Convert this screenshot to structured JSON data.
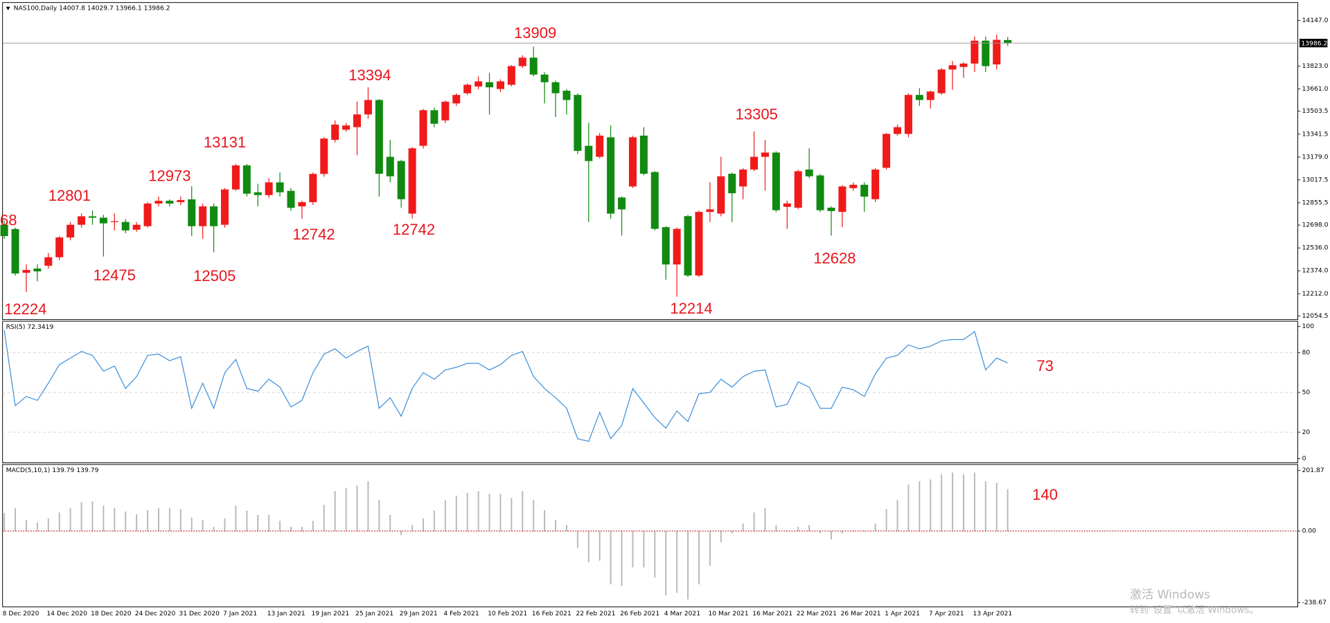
{
  "header": "NAS100,Daily  14007.8 14029.7 13966.1 13986.2",
  "watermark": [
    "激活 Windows",
    "转到“设置”以激活 Windows。"
  ],
  "chart_data": [
    {
      "type": "candlestick",
      "categories": [
        "8 Dec 2020",
        null,
        null,
        null,
        "14 Dec 2020",
        null,
        null,
        null,
        "18 Dec 2020",
        null,
        null,
        null,
        "24 Dec 2020",
        null,
        null,
        null,
        "31 Dec 2020",
        null,
        null,
        null,
        "7 Jan 2021",
        null,
        null,
        null,
        "13 Jan 2021",
        null,
        null,
        null,
        "19 Jan 2021",
        null,
        null,
        null,
        "25 Jan 2021",
        null,
        null,
        null,
        "29 Jan 2021",
        null,
        null,
        null,
        "4 Feb 2021",
        null,
        null,
        null,
        "10 Feb 2021",
        null,
        null,
        null,
        "16 Feb 2021",
        null,
        null,
        null,
        "22 Feb 2021",
        null,
        null,
        null,
        "26 Feb 2021",
        null,
        null,
        null,
        "4 Mar 2021",
        null,
        null,
        null,
        "10 Mar 2021",
        null,
        null,
        null,
        "16 Mar 2021",
        null,
        null,
        null,
        "22 Mar 2021",
        null,
        null,
        null,
        "26 Mar 2021",
        null,
        null,
        null,
        "1 Apr 2021",
        null,
        null,
        null,
        "7 Apr 2021",
        null,
        null,
        null,
        "13 Apr 2021",
        null,
        null,
        null
      ],
      "open": [
        12700,
        12670,
        12360,
        12390,
        12410,
        12470,
        12610,
        12700,
        12760,
        12750,
        12720,
        12720,
        12665,
        12690,
        12850,
        12870,
        12860,
        12880,
        12690,
        12830,
        12700,
        12950,
        13120,
        12930,
        12910,
        13000,
        12940,
        12830,
        12860,
        13060,
        13301,
        13373,
        13391,
        13481,
        13583,
        13181,
        13151,
        12779,
        13259,
        13511,
        13439,
        13559,
        13631,
        13679,
        13709,
        13661,
        13691,
        13823,
        13883,
        13763,
        13709,
        13649,
        13619,
        13259,
        13181,
        13319,
        12893,
        12971,
        13331,
        13073,
        12683,
        12419,
        12761,
        12341,
        12791,
        12779,
        13061,
        12971,
        13091,
        13181,
        13211,
        12827,
        12821,
        13091,
        13049,
        12821,
        12791,
        12959,
        12983,
        12881,
        13103,
        13343,
        13343,
        13619,
        13583,
        13631,
        13799,
        13817,
        13841,
        14003,
        13835,
        14007.8
      ],
      "high": [
        12730,
        12680,
        12420,
        12420,
        12500,
        12620,
        12720,
        12780,
        12801,
        12770,
        12780,
        12740,
        12720,
        12860,
        12900,
        12880,
        12900,
        12973,
        12850,
        12850,
        12960,
        13131,
        13130,
        12990,
        13030,
        13070,
        12960,
        12870,
        13070,
        13320,
        13439,
        13420,
        13571,
        13673,
        13590,
        13301,
        13160,
        13250,
        13520,
        13530,
        13580,
        13630,
        13700,
        13751,
        13775,
        13730,
        13830,
        13900,
        13961,
        13780,
        13720,
        13660,
        13630,
        13421,
        13350,
        13403,
        12900,
        13330,
        13391,
        13080,
        12690,
        12680,
        12770,
        12800,
        13001,
        13181,
        13070,
        13100,
        13361,
        13301,
        13220,
        12870,
        13090,
        13241,
        13060,
        12830,
        12980,
        13000,
        13000,
        13100,
        13350,
        13409,
        13630,
        13667,
        13650,
        13810,
        13859,
        13850,
        14033,
        14033,
        14045,
        14029.7
      ],
      "low": [
        12600,
        12340,
        12224,
        12300,
        12390,
        12450,
        12590,
        12680,
        12700,
        12475,
        12660,
        12640,
        12650,
        12680,
        12830,
        12830,
        12840,
        12620,
        12600,
        12505,
        12680,
        12940,
        12900,
        12830,
        12890,
        12900,
        12800,
        12742,
        12840,
        13040,
        13283,
        13360,
        13193,
        13450,
        12899,
        13000,
        12821,
        12743,
        13240,
        13390,
        13420,
        13540,
        13620,
        13660,
        13481,
        13640,
        13680,
        13810,
        13750,
        13559,
        13463,
        13481,
        13200,
        12719,
        13170,
        12743,
        12623,
        12960,
        13050,
        12660,
        12311,
        12191,
        12330,
        12330,
        12719,
        12760,
        12719,
        12881,
        13080,
        12941,
        12790,
        12671,
        12810,
        13030,
        12790,
        12623,
        12683,
        12940,
        12791,
        12860,
        13090,
        13330,
        13319,
        13541,
        13523,
        13620,
        13655,
        13739,
        13781,
        13781,
        13799,
        13966.1
      ],
      "close": [
        12620,
        12355,
        12380,
        12370,
        12470,
        12610,
        12700,
        12760,
        12750,
        12710,
        12725,
        12660,
        12700,
        12850,
        12870,
        12850,
        12875,
        12690,
        12830,
        12690,
        12950,
        13120,
        12920,
        12910,
        13000,
        12930,
        12820,
        12860,
        13060,
        13310,
        13409,
        13403,
        13481,
        13583,
        13061,
        13043,
        12881,
        13241,
        13511,
        13415,
        13571,
        13619,
        13691,
        13715,
        13673,
        13715,
        13823,
        13883,
        13763,
        13709,
        13631,
        13583,
        13223,
        13151,
        13331,
        12779,
        12809,
        13319,
        13061,
        12671,
        12419,
        12671,
        12341,
        12791,
        12809,
        13043,
        12923,
        13091,
        13181,
        13211,
        12803,
        12851,
        13079,
        13043,
        12803,
        12797,
        12971,
        12983,
        12899,
        13091,
        13343,
        13391,
        13619,
        13583,
        13643,
        13799,
        13829,
        13841,
        14003,
        13823,
        14009,
        13986.2
      ],
      "up_color": "#f01a1a",
      "down_color": "#118a11",
      "ylim": [
        12029,
        14261
      ],
      "yticks": [
        {
          "value": 14147,
          "label": "14147.0"
        },
        {
          "value": 13823,
          "label": "13823.0"
        },
        {
          "value": 13661,
          "label": "13661.0"
        },
        13503.5,
        13341.5,
        {
          "value": 13179,
          "label": "13179.0"
        },
        13017.5,
        12855.5,
        {
          "value": 12698,
          "label": "12698.0"
        },
        {
          "value": 12536,
          "label": "12536.0"
        },
        {
          "value": 12374,
          "label": "12374.0"
        },
        {
          "value": 12212,
          "label": "12212.0"
        },
        12054.5
      ],
      "current_price": 13986.2,
      "annotations": [
        "68",
        "12224",
        "12801",
        "12475",
        "12973",
        "12505",
        "13131",
        "12742",
        "13394",
        "12742",
        "13909",
        "12214",
        "13305",
        "12628"
      ],
      "annotation_color": "#e8141b"
    },
    {
      "type": "line",
      "title": "RSI(5) 72.3419",
      "color": "#3d8fd9",
      "values": [
        97,
        40,
        47,
        44,
        57,
        71,
        76,
        81,
        78,
        66,
        70,
        53,
        62,
        78,
        79,
        74,
        77,
        38,
        57,
        38,
        65,
        75,
        53,
        51,
        60,
        54,
        39,
        44,
        65,
        79,
        83,
        76,
        81,
        85,
        38,
        46,
        32,
        53,
        65,
        60,
        67,
        69,
        72,
        72,
        67,
        71,
        78,
        81,
        62,
        53,
        46,
        38,
        15,
        13,
        35,
        15,
        25,
        53,
        42,
        31,
        23,
        36,
        28,
        49,
        50,
        60,
        54,
        62,
        66,
        67,
        39,
        41,
        58,
        54,
        38,
        38,
        54,
        52,
        47,
        64,
        76,
        78,
        86,
        83,
        85,
        89,
        90,
        90,
        96,
        67,
        76,
        72.3419
      ],
      "ylim": [
        -3.2,
        103.2
      ],
      "yticks": [
        100,
        80,
        50,
        20,
        0
      ],
      "levels": [
        80,
        50,
        20
      ],
      "annotations": [
        "73"
      ],
      "annotation_color": "#e8141b"
    },
    {
      "type": "bar",
      "title": "MACD(5,10,1) 139.79 139.79",
      "color": "#b8b8b8",
      "values": [
        60,
        76,
        37,
        28,
        42,
        62,
        76,
        96,
        99,
        85,
        76,
        65,
        56,
        70,
        76,
        76,
        73,
        45,
        37,
        14,
        42,
        85,
        68,
        54,
        54,
        34,
        14,
        14,
        34,
        87,
        133,
        144,
        152,
        166,
        104,
        54,
        -14,
        20,
        42,
        68,
        102,
        118,
        127,
        133,
        124,
        124,
        110,
        133,
        104,
        70,
        37,
        20,
        -56,
        -104,
        -99,
        -178,
        -183,
        -121,
        -121,
        -155,
        -214,
        -206,
        -228,
        -178,
        -116,
        -37,
        -8,
        25,
        62,
        76,
        20,
        3,
        14,
        20,
        -8,
        -28,
        -8,
        3,
        -3,
        25,
        73,
        104,
        155,
        166,
        172,
        189,
        195,
        189,
        195,
        166,
        161,
        139.79
      ],
      "ylim": [
        -253,
        219
      ],
      "yticks": [
        201.87,
        {
          "value": 0,
          "label": "0.00"
        },
        -238.67
      ],
      "zero_line_color": "#c0282d",
      "annotations": [
        "140"
      ],
      "annotation_color": "#e8141b"
    }
  ]
}
